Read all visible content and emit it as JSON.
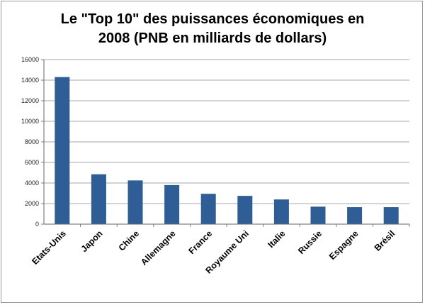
{
  "chart_data": {
    "type": "bar",
    "title_line1": "Le \"Top 10\" des puissances économiques en",
    "title_line2": "2008 (PNB en milliards de dollars)",
    "xlabel": "",
    "ylabel": "",
    "ylim": [
      0,
      16000
    ],
    "yticks": [
      0,
      2000,
      4000,
      6000,
      8000,
      10000,
      12000,
      14000,
      16000
    ],
    "grid": true,
    "legend": "none",
    "bar_color": "#2f5d95",
    "categories": [
      "Etats-Unis",
      "Japon",
      "Chine",
      "Allemagne",
      "France",
      "Royaume Uni",
      "Italie",
      "Russie",
      "Espagne",
      "Brésil"
    ],
    "values": [
      14300,
      4850,
      4250,
      3800,
      2950,
      2750,
      2400,
      1700,
      1650,
      1650
    ]
  }
}
